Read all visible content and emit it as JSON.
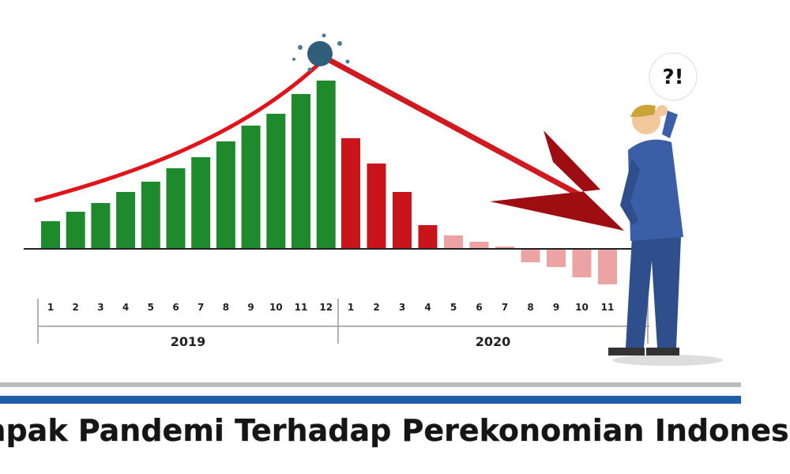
{
  "chart_data": {
    "type": "bar",
    "title": "Dampak Pandemi Terhadap Perekonomian Indonesia",
    "bubble": "?!",
    "groups": [
      {
        "label": "2019",
        "color": "#1f8a2c",
        "categories": [
          "1",
          "2",
          "3",
          "4",
          "5",
          "6",
          "7",
          "8",
          "9",
          "10",
          "11",
          "12"
        ],
        "values": [
          35,
          47,
          58,
          72,
          85,
          102,
          116,
          136,
          156,
          171,
          196,
          213
        ]
      },
      {
        "label": "2020",
        "color": "#c8141a",
        "categories": [
          "1",
          "2",
          "3",
          "4",
          "5",
          "6",
          "7",
          "8",
          "9",
          "10",
          "11"
        ],
        "values": [
          140,
          108,
          72,
          30,
          17,
          9,
          3,
          -17,
          -23,
          -36,
          -45
        ],
        "colors": [
          "#c8141a",
          "#c8141a",
          "#c8141a",
          "#c8141a",
          "#eba3a3",
          "#eba3a3",
          "#eba3a3",
          "#eba3a3",
          "#eba3a3",
          "#eba3a3",
          "#eba3a3"
        ]
      }
    ]
  }
}
